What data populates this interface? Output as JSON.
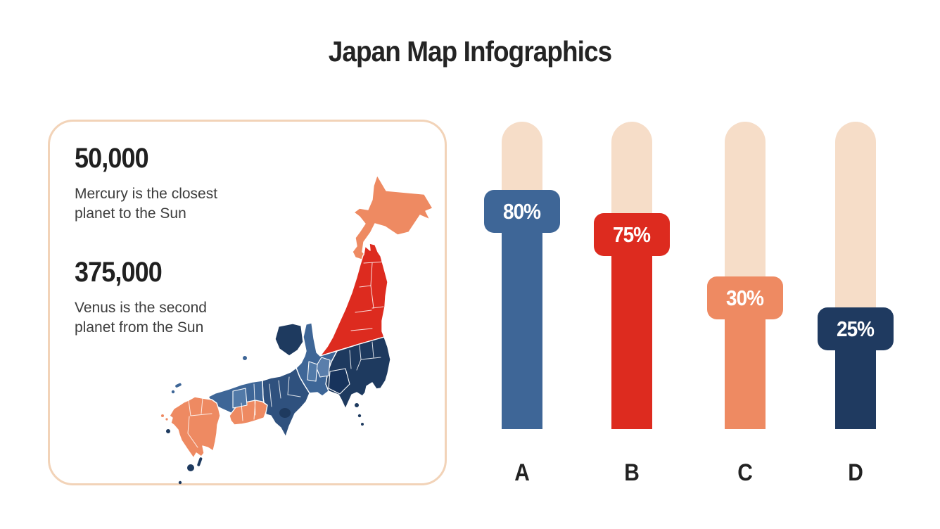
{
  "title": "Japan Map Infographics",
  "info_panel": {
    "stats": [
      {
        "value": "50,000",
        "description": "Mercury is the closest planet to the Sun"
      },
      {
        "value": "375,000",
        "description": "Venus is the second planet from the Sun"
      }
    ]
  },
  "map": {
    "subject": "Japan",
    "regions": [
      {
        "name": "Hokkaido",
        "color": "#EE8A62"
      },
      {
        "name": "Tohoku",
        "color": "#DD2B1F"
      },
      {
        "name": "Kanto",
        "color": "#1E3A5F"
      },
      {
        "name": "Chubu",
        "color": "#3E6697"
      },
      {
        "name": "Kansai",
        "color": "#2F517E"
      },
      {
        "name": "Chugoku",
        "color": "#3E6697"
      },
      {
        "name": "Shikoku",
        "color": "#EE8A62"
      },
      {
        "name": "Kyushu",
        "color": "#EE8A62"
      }
    ],
    "border_color": "#ffffff"
  },
  "chart_data": {
    "type": "bar",
    "categories": [
      "A",
      "B",
      "C",
      "D"
    ],
    "values": [
      80,
      75,
      30,
      25
    ],
    "labels": [
      "80%",
      "75%",
      "30%",
      "25%"
    ],
    "colors": [
      "#3E6697",
      "#DD2B1F",
      "#EE8A62",
      "#1F3A60"
    ],
    "track_color": "#F6DDC8",
    "orientation": "vertical-slider",
    "ylim": [
      0,
      100
    ],
    "title": "Japan Map Infographics"
  },
  "palette": {
    "blue": "#3E6697",
    "red": "#DD2B1F",
    "salmon": "#EE8A62",
    "navy": "#1F3A60",
    "peach_track": "#F6DDC8",
    "panel_border": "#F2D3B8",
    "text_dark": "#242424",
    "text_body": "#3d3d3d"
  }
}
